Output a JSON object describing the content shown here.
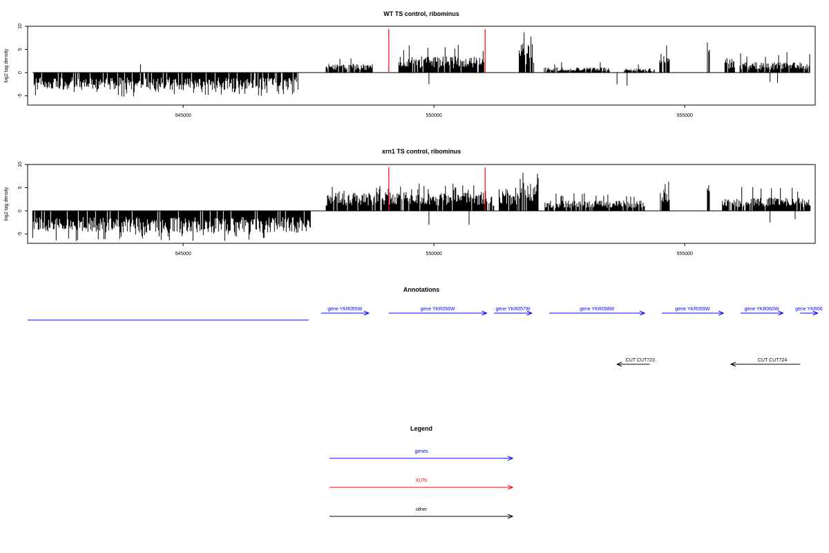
{
  "chart_data": {
    "type": "bar",
    "xlim": [
      541900,
      557600
    ],
    "x_ticks": [
      "545000",
      "550000",
      "555000"
    ],
    "x_tick_values": [
      545000,
      550000,
      555000
    ],
    "xut_markers": [
      549100,
      551020
    ],
    "marker_color": "#ff0000",
    "panels": [
      {
        "title": "WT TS control, ribominus",
        "ylabel": "log2 tag density",
        "ylim": [
          -7,
          10
        ],
        "y_ticks": [
          "-5",
          "0",
          "5",
          "10"
        ],
        "y_tick_values": [
          -5,
          0,
          5,
          10
        ],
        "segments": [
          {
            "start": 542000,
            "end": 547300,
            "sign": -1,
            "level": 3.0,
            "max": 5.2
          },
          {
            "start": 547850,
            "end": 548800,
            "sign": 1,
            "level": 1.6,
            "max": 3.2
          },
          {
            "start": 549300,
            "end": 551000,
            "sign": 1,
            "level": 2.8,
            "max": 6.0
          },
          {
            "start": 551700,
            "end": 552000,
            "sign": 1,
            "level": 5.2,
            "max": 8.8
          },
          {
            "start": 552200,
            "end": 553500,
            "sign": 1,
            "level": 0.9,
            "max": 2.3
          },
          {
            "start": 553800,
            "end": 554400,
            "sign": 1,
            "level": 0.8,
            "max": 2.0
          },
          {
            "start": 554500,
            "end": 554700,
            "sign": 1,
            "level": 3.5,
            "max": 7.3
          },
          {
            "start": 555450,
            "end": 555500,
            "sign": 1,
            "level": 5.5,
            "max": 7.0
          },
          {
            "start": 555800,
            "end": 556000,
            "sign": 1,
            "level": 2.5,
            "max": 5.0
          },
          {
            "start": 556100,
            "end": 557500,
            "sign": 1,
            "level": 1.8,
            "max": 4.5
          }
        ],
        "negative_spikes": [
          {
            "x": 545000,
            "value": -3.8
          },
          {
            "x": 549900,
            "value": -2.5
          },
          {
            "x": 553650,
            "value": -2.5
          },
          {
            "x": 553850,
            "value": -2.8
          },
          {
            "x": 556700,
            "value": -2.0
          },
          {
            "x": 556850,
            "value": -2.2
          }
        ],
        "positive_spikes": [
          {
            "x": 544150,
            "value": 1.8
          }
        ]
      },
      {
        "title": "xrn1 TS control, ribominus",
        "ylabel": "log2 tag density",
        "ylim": [
          -7,
          10
        ],
        "y_ticks": [
          "-5",
          "0",
          "5",
          "10"
        ],
        "y_tick_values": [
          -5,
          0,
          5,
          10
        ],
        "segments": [
          {
            "start": 542000,
            "end": 547550,
            "sign": -1,
            "level": 3.8,
            "max": 6.5
          },
          {
            "start": 547850,
            "end": 549100,
            "sign": 1,
            "level": 3.2,
            "max": 5.5
          },
          {
            "start": 549100,
            "end": 551000,
            "sign": 1,
            "level": 3.3,
            "max": 6.0
          },
          {
            "start": 551000,
            "end": 551200,
            "sign": 1,
            "level": 2.5,
            "max": 4.5
          },
          {
            "start": 551300,
            "end": 551650,
            "sign": 1,
            "level": 3.0,
            "max": 5.0
          },
          {
            "start": 551650,
            "end": 552100,
            "sign": 1,
            "level": 6.0,
            "max": 9.6
          },
          {
            "start": 552200,
            "end": 554200,
            "sign": 1,
            "level": 1.8,
            "max": 4.0
          },
          {
            "start": 554500,
            "end": 554700,
            "sign": 1,
            "level": 4.0,
            "max": 7.5
          },
          {
            "start": 555450,
            "end": 555500,
            "sign": 1,
            "level": 5.5,
            "max": 7.3
          },
          {
            "start": 555750,
            "end": 557500,
            "sign": 1,
            "level": 2.3,
            "max": 5.3
          }
        ],
        "negative_spikes": [
          {
            "x": 549900,
            "value": -3.0
          },
          {
            "x": 550700,
            "value": -3.0
          },
          {
            "x": 556700,
            "value": -2.5
          },
          {
            "x": 557200,
            "value": -1.8
          }
        ],
        "positive_spikes": []
      }
    ],
    "annotations": {
      "title": "Annotations",
      "genes": [
        {
          "label": "",
          "start": 541900,
          "end": 547500,
          "strand": "none"
        },
        {
          "label": "gene YKR055W",
          "start": 547750,
          "end": 548700,
          "strand": "+"
        },
        {
          "label": "gene YKR056W",
          "start": 549100,
          "end": 551050,
          "strand": "+"
        },
        {
          "label": "gene YKR057W",
          "start": 551200,
          "end": 551950,
          "strand": "+"
        },
        {
          "label": "gene YKR058W",
          "start": 552300,
          "end": 554200,
          "strand": "+"
        },
        {
          "label": "gene YKR059W",
          "start": 554540,
          "end": 555770,
          "strand": "+"
        },
        {
          "label": "gene YKR060W",
          "start": 556110,
          "end": 556960,
          "strand": "+"
        },
        {
          "label": "gene YKR06",
          "start": 557300,
          "end": 557650,
          "strand": "+"
        }
      ],
      "other": [
        {
          "label": "CUT CUT723",
          "start": 553650,
          "end": 554300,
          "strand": "-"
        },
        {
          "label": "CUT CUT724",
          "start": 555920,
          "end": 557300,
          "strand": "-"
        }
      ]
    },
    "legend": {
      "title": "Legend",
      "entries": [
        {
          "label": "genes",
          "color": "#0000ff"
        },
        {
          "label": "XUTs",
          "color": "#ff0000"
        },
        {
          "label": "other",
          "color": "#000000"
        }
      ]
    }
  }
}
